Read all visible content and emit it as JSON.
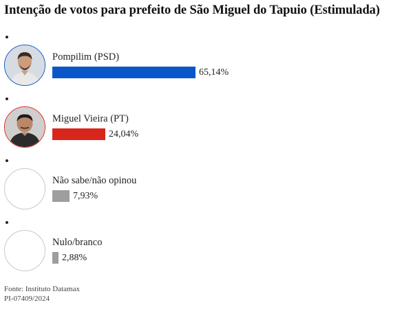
{
  "title": "Intenção de votos para prefeito de São Miguel do Tapuio (Estimulada)",
  "chart_data": {
    "type": "bar",
    "orientation": "horizontal",
    "categories": [
      "Pompilim (PSD)",
      "Miguel Vieira (PT)",
      "Não sabe/não opinou",
      "Nulo/branco"
    ],
    "values": [
      65.14,
      24.04,
      7.93,
      2.88
    ],
    "value_labels": [
      "65,14%",
      "24,04%",
      "7,93%",
      "2,88%"
    ],
    "colors": [
      "#0b57c9",
      "#d9261c",
      "#9e9e9e",
      "#9e9e9e"
    ],
    "avatars": [
      "candidate-photo",
      "candidate-photo",
      "empty",
      "empty"
    ],
    "xlim": [
      0,
      100
    ],
    "grid": false,
    "legend": "none"
  },
  "footer": {
    "source": "Fonte: Instituto Datamax",
    "registration": "PI-07409/2024"
  }
}
